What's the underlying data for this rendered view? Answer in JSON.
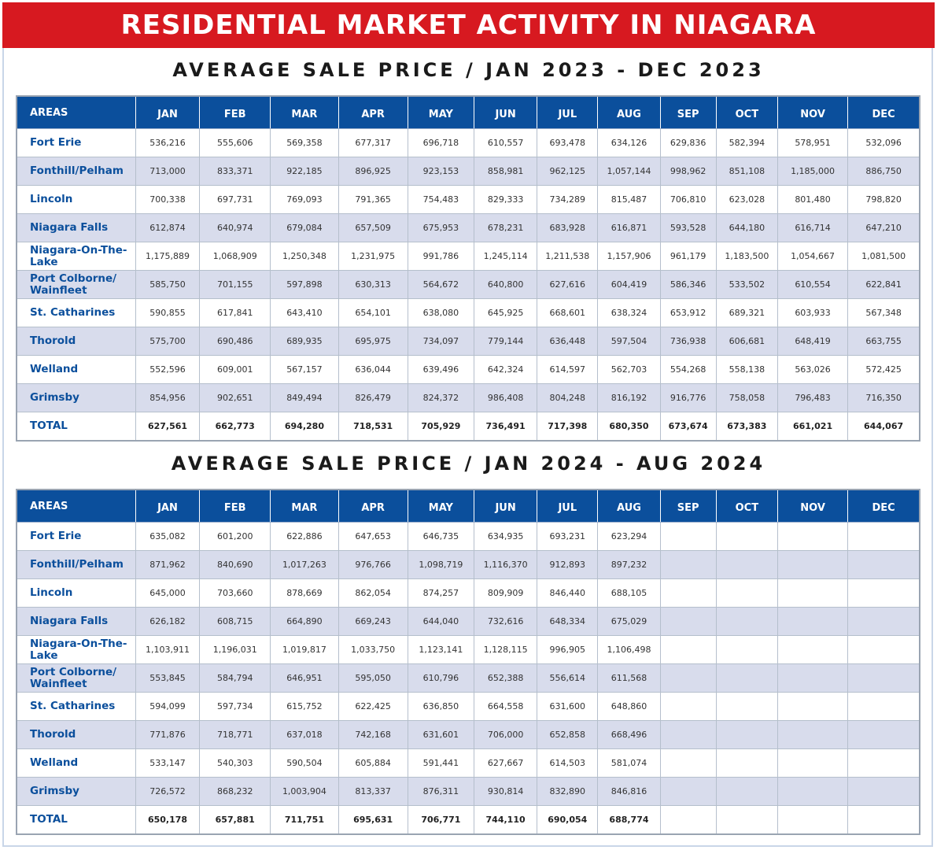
{
  "banner": "RESIDENTIAL MARKET ACTIVITY IN NIAGARA",
  "months": [
    "JAN",
    "FEB",
    "MAR",
    "APR",
    "MAY",
    "JUN",
    "JUL",
    "AUG",
    "SEP",
    "OCT",
    "NOV",
    "DEC"
  ],
  "area_header": "AREAS",
  "table2023": {
    "title": "AVERAGE SALE PRICE / JAN 2023 - DEC 2023",
    "rows": [
      {
        "area": "Fort Erie",
        "values": [
          "536,216",
          "555,606",
          "569,358",
          "677,317",
          "696,718",
          "610,557",
          "693,478",
          "634,126",
          "629,836",
          "582,394",
          "578,951",
          "532,096"
        ]
      },
      {
        "area": "Fonthill/Pelham",
        "values": [
          "713,000",
          "833,371",
          "922,185",
          "896,925",
          "923,153",
          "858,981",
          "962,125",
          "1,057,144",
          "998,962",
          "851,108",
          "1,185,000",
          "886,750"
        ]
      },
      {
        "area": "Lincoln",
        "values": [
          "700,338",
          "697,731",
          "769,093",
          "791,365",
          "754,483",
          "829,333",
          "734,289",
          "815,487",
          "706,810",
          "623,028",
          "801,480",
          "798,820"
        ]
      },
      {
        "area": "Niagara Falls",
        "values": [
          "612,874",
          "640,974",
          "679,084",
          "657,509",
          "675,953",
          "678,231",
          "683,928",
          "616,871",
          "593,528",
          "644,180",
          "616,714",
          "647,210"
        ]
      },
      {
        "area": "Niagara-On-The-Lake",
        "values": [
          "1,175,889",
          "1,068,909",
          "1,250,348",
          "1,231,975",
          "991,786",
          "1,245,114",
          "1,211,538",
          "1,157,906",
          "961,179",
          "1,183,500",
          "1,054,667",
          "1,081,500"
        ]
      },
      {
        "area": "Port Colborne/ Wainfleet",
        "values": [
          "585,750",
          "701,155",
          "597,898",
          "630,313",
          "564,672",
          "640,800",
          "627,616",
          "604,419",
          "586,346",
          "533,502",
          "610,554",
          "622,841"
        ]
      },
      {
        "area": "St. Catharines",
        "values": [
          "590,855",
          "617,841",
          "643,410",
          "654,101",
          "638,080",
          "645,925",
          "668,601",
          "638,324",
          "653,912",
          "689,321",
          "603,933",
          "567,348"
        ]
      },
      {
        "area": "Thorold",
        "values": [
          "575,700",
          "690,486",
          "689,935",
          "695,975",
          "734,097",
          "779,144",
          "636,448",
          "597,504",
          "736,938",
          "606,681",
          "648,419",
          "663,755"
        ]
      },
      {
        "area": "Welland",
        "values": [
          "552,596",
          "609,001",
          "567,157",
          "636,044",
          "639,496",
          "642,324",
          "614,597",
          "562,703",
          "554,268",
          "558,138",
          "563,026",
          "572,425"
        ]
      },
      {
        "area": "Grimsby",
        "values": [
          "854,956",
          "902,651",
          "849,494",
          "826,479",
          "824,372",
          "986,408",
          "804,248",
          "816,192",
          "916,776",
          "758,058",
          "796,483",
          "716,350"
        ]
      },
      {
        "area": "TOTAL",
        "values": [
          "627,561",
          "662,773",
          "694,280",
          "718,531",
          "705,929",
          "736,491",
          "717,398",
          "680,350",
          "673,674",
          "673,383",
          "661,021",
          "644,067"
        ]
      }
    ]
  },
  "table2024": {
    "title": "AVERAGE SALE PRICE / JAN 2024 - AUG 2024",
    "rows": [
      {
        "area": "Fort Erie",
        "values": [
          "635,082",
          "601,200",
          "622,886",
          "647,653",
          "646,735",
          "634,935",
          "693,231",
          "623,294",
          "",
          "",
          "",
          ""
        ]
      },
      {
        "area": "Fonthill/Pelham",
        "values": [
          "871,962",
          "840,690",
          "1,017,263",
          "976,766",
          "1,098,719",
          "1,116,370",
          "912,893",
          "897,232",
          "",
          "",
          "",
          ""
        ]
      },
      {
        "area": "Lincoln",
        "values": [
          "645,000",
          "703,660",
          "878,669",
          "862,054",
          "874,257",
          "809,909",
          "846,440",
          "688,105",
          "",
          "",
          "",
          ""
        ]
      },
      {
        "area": "Niagara Falls",
        "values": [
          "626,182",
          "608,715",
          "664,890",
          "669,243",
          "644,040",
          "732,616",
          "648,334",
          "675,029",
          "",
          "",
          "",
          ""
        ]
      },
      {
        "area": "Niagara-On-The-Lake",
        "values": [
          "1,103,911",
          "1,196,031",
          "1,019,817",
          "1,033,750",
          "1,123,141",
          "1,128,115",
          "996,905",
          "1,106,498",
          "",
          "",
          "",
          ""
        ]
      },
      {
        "area": "Port Colborne/ Wainfleet",
        "values": [
          "553,845",
          "584,794",
          "646,951",
          "595,050",
          "610,796",
          "652,388",
          "556,614",
          "611,568",
          "",
          "",
          "",
          ""
        ]
      },
      {
        "area": "St. Catharines",
        "values": [
          "594,099",
          "597,734",
          "615,752",
          "622,425",
          "636,850",
          "664,558",
          "631,600",
          "648,860",
          "",
          "",
          "",
          ""
        ]
      },
      {
        "area": "Thorold",
        "values": [
          "771,876",
          "718,771",
          "637,018",
          "742,168",
          "631,601",
          "706,000",
          "652,858",
          "668,496",
          "",
          "",
          "",
          ""
        ]
      },
      {
        "area": "Welland",
        "values": [
          "533,147",
          "540,303",
          "590,504",
          "605,884",
          "591,441",
          "627,667",
          "614,503",
          "581,074",
          "",
          "",
          "",
          ""
        ]
      },
      {
        "area": "Grimsby",
        "values": [
          "726,572",
          "868,232",
          "1,003,904",
          "813,337",
          "876,311",
          "930,814",
          "832,890",
          "846,816",
          "",
          "",
          "",
          ""
        ]
      },
      {
        "area": "TOTAL",
        "values": [
          "650,178",
          "657,881",
          "711,751",
          "695,631",
          "706,771",
          "744,110",
          "690,054",
          "688,774",
          "",
          "",
          "",
          ""
        ]
      }
    ]
  }
}
